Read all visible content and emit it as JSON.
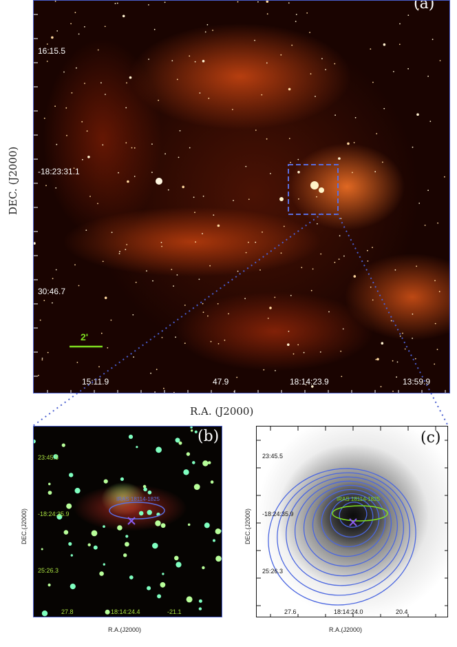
{
  "panel_a": {
    "tag": "(a)",
    "dec_ticks": [
      "16:15.5",
      "-18:23:31.1",
      "30:46.7"
    ],
    "ra_ticks": [
      "15:11.9",
      "47.9",
      "18:14:23.9",
      "13:59.9"
    ],
    "scalebar_label": "2'",
    "xlabel": "R.A. (J2000)",
    "ylabel": "DEC. (J2000)"
  },
  "panel_b": {
    "tag": "(b)",
    "dec_ticks": [
      "23:45.5",
      "-18:24:35.9",
      "25:26.3"
    ],
    "ra_ticks": [
      "27.8",
      "18:14:24.4",
      "-21.1"
    ],
    "source_label": "IRAS 18114-1825",
    "xlabel": "R.A.(J2000)",
    "ylabel": "DEC.(J2000)"
  },
  "panel_c": {
    "tag": "(c)",
    "dec_ticks": [
      "23:45.5",
      "-18:24:35.9",
      "25:26.3"
    ],
    "ra_ticks": [
      "27.6",
      "18:14:24.0",
      "20.4"
    ],
    "source_label": "IRAS 18114-1825",
    "xlabel": "R.A.(J2000)",
    "ylabel": "DEC.(J2000)"
  },
  "colors": {
    "box": "#5a6ee0",
    "scalebar": "#7fe020",
    "iras_label_b": "#5a6ee0",
    "iras_label_c": "#7fe020",
    "tick_b": "#a8e040",
    "contour": "#4a66e0"
  }
}
